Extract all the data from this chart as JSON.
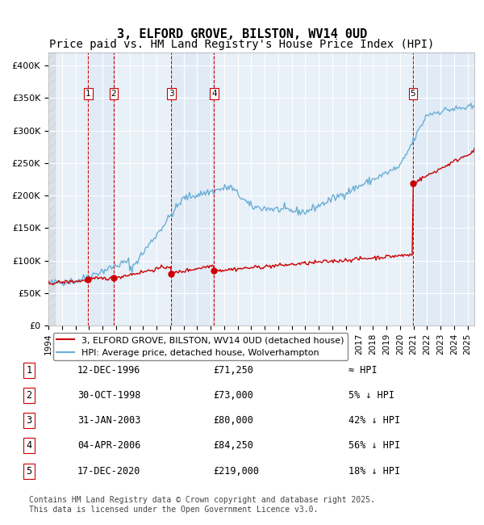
{
  "title": "3, ELFORD GROVE, BILSTON, WV14 0UD",
  "subtitle": "Price paid vs. HM Land Registry's House Price Index (HPI)",
  "ylabel": "",
  "xlim_year": [
    1994,
    2025.5
  ],
  "ylim": [
    0,
    420000
  ],
  "yticks": [
    0,
    50000,
    100000,
    150000,
    200000,
    250000,
    300000,
    350000,
    400000
  ],
  "ytick_labels": [
    "£0",
    "£50K",
    "£100K",
    "£150K",
    "£200K",
    "£250K",
    "£300K",
    "£350K",
    "£400K"
  ],
  "background_color": "#ffffff",
  "plot_bg_color": "#e8f0f8",
  "grid_color": "#ffffff",
  "hpi_color": "#6aaed6",
  "price_color": "#cc0000",
  "sale_marker_color": "#cc0000",
  "vline_color": "#cc0000",
  "vline_shade_color": "#dce8f5",
  "transactions": [
    {
      "num": 1,
      "date_label": "12-DEC-1996",
      "year": 1996.95,
      "price": 71250,
      "hpi_note": "≈ HPI"
    },
    {
      "num": 2,
      "date_label": "30-OCT-1998",
      "year": 1998.83,
      "price": 73000,
      "hpi_note": "5% ↓ HPI"
    },
    {
      "num": 3,
      "date_label": "31-JAN-2003",
      "year": 2003.08,
      "price": 80000,
      "hpi_note": "42% ↓ HPI"
    },
    {
      "num": 4,
      "date_label": "04-APR-2006",
      "year": 2006.25,
      "price": 84250,
      "hpi_note": "56% ↓ HPI"
    },
    {
      "num": 5,
      "date_label": "17-DEC-2020",
      "year": 2020.96,
      "price": 219000,
      "hpi_note": "18% ↓ HPI"
    }
  ],
  "legend_price_label": "3, ELFORD GROVE, BILSTON, WV14 0UD (detached house)",
  "legend_hpi_label": "HPI: Average price, detached house, Wolverhampton",
  "footnote": "Contains HM Land Registry data © Crown copyright and database right 2025.\nThis data is licensed under the Open Government Licence v3.0.",
  "title_fontsize": 11,
  "subtitle_fontsize": 10,
  "tick_fontsize": 8,
  "legend_fontsize": 8,
  "table_fontsize": 8.5,
  "footnote_fontsize": 7
}
